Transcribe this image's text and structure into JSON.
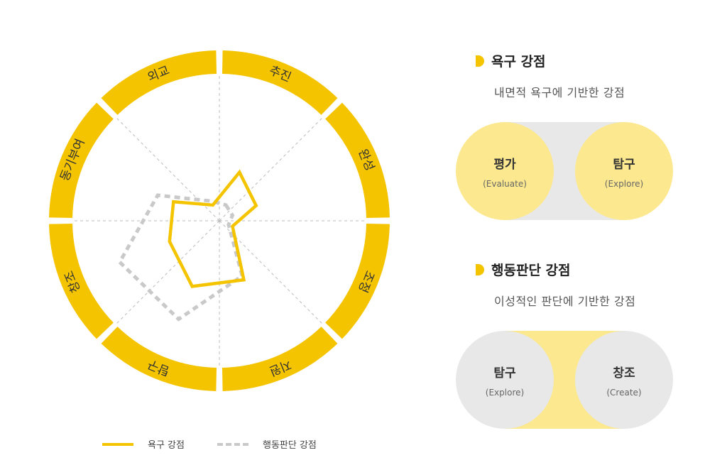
{
  "chart_data": {
    "type": "radar",
    "axes": [
      "추진",
      "완성",
      "조정",
      "지원",
      "탐구",
      "창조",
      "동기부여",
      "외교"
    ],
    "series": [
      {
        "name": "욕구 강점",
        "values": [
          37,
          28,
          10,
          45,
          50,
          38,
          35,
          12
        ]
      },
      {
        "name": "행동판단 강점",
        "values": [
          12,
          10,
          7,
          42,
          75,
          76,
          47,
          15
        ]
      }
    ],
    "rmax": 100,
    "legend": "bottom"
  },
  "legend": {
    "items": [
      {
        "label": "욕구 강점",
        "style": "solid"
      },
      {
        "label": "행동판단 강점",
        "style": "dashed"
      }
    ]
  },
  "colors": {
    "accent": "#F5C400",
    "light_yellow": "#FCE88E",
    "pill_gray": "#E8E8E8",
    "gray_line": "#C9C9C9"
  },
  "section1": {
    "title": "욕구 강점",
    "subtitle": "내면적 욕구에 기반한 강점",
    "left": {
      "title": "평가",
      "sub": "(Evaluate)"
    },
    "right": {
      "title": "탐구",
      "sub": "(Explore)"
    }
  },
  "section2": {
    "title": "행동판단 강점",
    "subtitle": "이성적인 판단에 기반한 강점",
    "left": {
      "title": "탐구",
      "sub": "(Explore)"
    },
    "right": {
      "title": "창조",
      "sub": "(Create)"
    }
  }
}
